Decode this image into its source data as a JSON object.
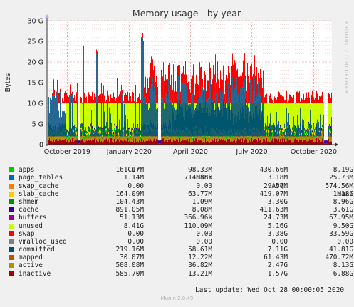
{
  "chart_data": {
    "type": "area",
    "title": "Memory usage - by year",
    "ylabel": "Bytes",
    "side_text": "RRDTOOL / TOBI OETIKER",
    "ylim": [
      0,
      30
    ],
    "y_ticks": [
      0,
      5,
      10,
      15,
      20,
      25,
      30
    ],
    "y_tick_labels": [
      "0",
      "5 G",
      "10 G",
      "15 G",
      "20 G",
      "25 G",
      "30 G"
    ],
    "x_ticks": [
      {
        "date": "2019-10-01",
        "label": "October 2019"
      },
      {
        "date": "2020-01-01",
        "label": "January 2020"
      },
      {
        "date": "2020-04-01",
        "label": "April 2020"
      },
      {
        "date": "2020-07-01",
        "label": "July 2020"
      },
      {
        "date": "2020-10-01",
        "label": "October 2020"
      }
    ],
    "x_range": [
      "2019-09-01",
      "2020-10-28"
    ],
    "grid": true,
    "legend_headers": [
      "Cur:",
      "Min:",
      "Avg:",
      "Max:"
    ],
    "series": [
      {
        "name": "apps",
        "color": "#00cc00",
        "cur": "161.17M",
        "min": "98.33M",
        "avg": "430.66M",
        "max": "8.19G"
      },
      {
        "name": "page_tables",
        "color": "#0066b3",
        "cur": "1.14M",
        "min": "714.88k",
        "avg": "3.18M",
        "max": "25.73M"
      },
      {
        "name": "swap_cache",
        "color": "#ff8000",
        "cur": "0.00",
        "min": "0.00",
        "avg": "29.57M",
        "max": "574.56M"
      },
      {
        "name": "slab_cache",
        "color": "#ffcc00",
        "cur": "164.09M",
        "min": "63.77M",
        "avg": "419.07M",
        "max": "1.18G"
      },
      {
        "name": "shmem",
        "color": "#008f00",
        "cur": "104.43M",
        "min": "1.09M",
        "avg": "3.30G",
        "max": "8.96G"
      },
      {
        "name": "cache",
        "color": "#330099",
        "cur": "891.05M",
        "min": "8.08M",
        "avg": "411.63M",
        "max": "3.61G"
      },
      {
        "name": "buffers",
        "color": "#990099",
        "cur": "51.13M",
        "min": "366.96k",
        "avg": "24.73M",
        "max": "67.95M"
      },
      {
        "name": "unused",
        "color": "#ccff00",
        "cur": "8.41G",
        "min": "110.09M",
        "avg": "5.16G",
        "max": "9.50G"
      },
      {
        "name": "swap",
        "color": "#ff0000",
        "cur": "0.00",
        "min": "0.00",
        "avg": "3.38G",
        "max": "33.59G"
      },
      {
        "name": "vmalloc_used",
        "color": "#808080",
        "cur": "0.00",
        "min": "0.00",
        "avg": "0.00",
        "max": "0.00"
      },
      {
        "name": "committed",
        "color": "#004d80",
        "cur": "219.16M",
        "min": "58.61M",
        "avg": "7.11G",
        "max": "41.81G"
      },
      {
        "name": "mapped",
        "color": "#b35900",
        "cur": "30.07M",
        "min": "12.22M",
        "avg": "61.43M",
        "max": "470.72M"
      },
      {
        "name": "active",
        "color": "#b38f00",
        "cur": "508.08M",
        "min": "36.82M",
        "avg": "2.47G",
        "max": "8.13G"
      },
      {
        "name": "inactive",
        "color": "#a60000",
        "cur": "585.70M",
        "min": "13.21M",
        "avg": "1.57G",
        "max": "6.88G"
      }
    ]
  },
  "last_update": "Last update: Wed Oct 28 00:00:05 2020",
  "munin_version": "Munin 2.0.49"
}
